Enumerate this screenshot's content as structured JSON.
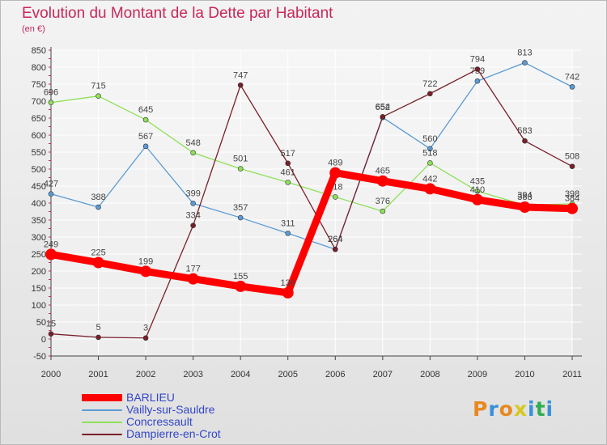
{
  "title": "Evolution du Montant de la Dette par Habitant",
  "unit": "(en €)",
  "brand": "Proxiti",
  "brand_colors": [
    "#e8881e",
    "#3a8fd8",
    "#e8881e",
    "#d8c81e",
    "#3a8fd8",
    "#2fae4f",
    "#3a8fd8"
  ],
  "chart_data": {
    "type": "line",
    "categories": [
      "2000",
      "2001",
      "2002",
      "2003",
      "2004",
      "2005",
      "2006",
      "2007",
      "2008",
      "2009",
      "2010",
      "2011"
    ],
    "ylim": [
      -50,
      850
    ],
    "yticks": [
      -50,
      0,
      50,
      100,
      150,
      200,
      250,
      300,
      350,
      400,
      450,
      500,
      550,
      600,
      650,
      700,
      750,
      800,
      850
    ],
    "grid": true,
    "legend_position": "bottom-left",
    "series": [
      {
        "name": "BARLIEU",
        "color": "#ff0000",
        "width": 9,
        "values": [
          249,
          225,
          199,
          177,
          155,
          136,
          489,
          465,
          442,
          410,
          388,
          384
        ]
      },
      {
        "name": "Vailly-sur-Sauldre",
        "color": "#5b9bd5",
        "width": 1.3,
        "values": [
          427,
          388,
          567,
          399,
          357,
          311,
          264,
          652,
          560,
          759,
          813,
          742
        ]
      },
      {
        "name": "Concressault",
        "color": "#8fe05a",
        "width": 1.3,
        "values": [
          696,
          715,
          645,
          548,
          501,
          461,
          418,
          376,
          518,
          435,
          394,
          398
        ]
      },
      {
        "name": "Dampierre-en-Crot",
        "color": "#7a1f2a",
        "width": 1.3,
        "values": [
          15,
          5,
          3,
          334,
          747,
          517,
          264,
          654,
          722,
          794,
          583,
          508
        ]
      }
    ]
  }
}
